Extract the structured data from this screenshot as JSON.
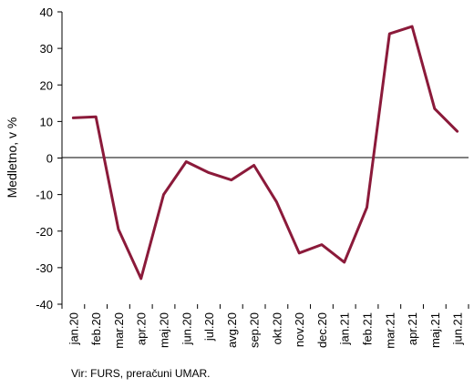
{
  "chart_data": {
    "type": "line",
    "ylabel": "Medletno, v %",
    "ylim": [
      -40,
      40
    ],
    "yticks": [
      40,
      30,
      20,
      10,
      0,
      -10,
      -20,
      -30,
      -40
    ],
    "categories": [
      "jan.20",
      "feb.20",
      "mar.20",
      "apr.20",
      "maj.20",
      "jun.20",
      "jul.20",
      "avg.20",
      "sep.20",
      "okt.20",
      "nov.20",
      "dec.20",
      "jan.21",
      "feb.21",
      "mar.21",
      "apr.21",
      "maj.21",
      "jun.21"
    ],
    "series": [
      {
        "color": "#8b1a3a",
        "values": [
          11,
          11.3,
          -19.5,
          -33,
          -10,
          -1,
          -4,
          -6,
          -2,
          -12,
          -26,
          -23.7,
          -28.5,
          -13.5,
          34,
          36,
          13.5,
          7.3
        ]
      }
    ],
    "grid": false,
    "source": "Vir: FURS, preračuni UMAR."
  }
}
